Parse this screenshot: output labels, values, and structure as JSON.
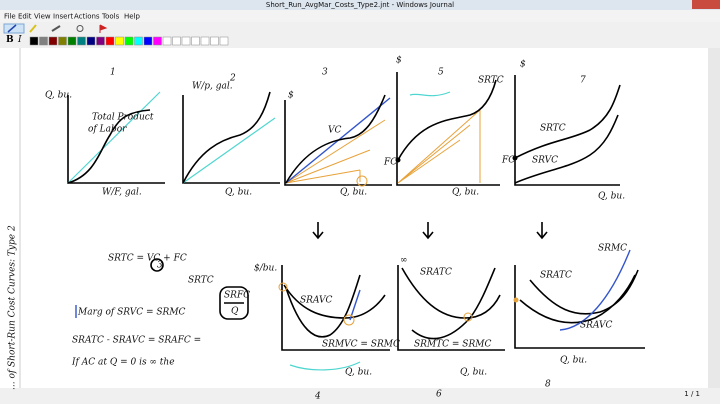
{
  "window": {
    "title": "Short_Run_AvgMar_Costs_Type2.jnt - Windows Journal"
  },
  "menu": [
    "File",
    "Edit",
    "View",
    "Insert",
    "Actions",
    "Tools",
    "Help"
  ],
  "page_counter": "1 / 1",
  "notes": {
    "side_title": "... of Short-Run Cost Curves: Type 2",
    "labels": [
      "1",
      "Q, bu.",
      "Total Product",
      "of Labor",
      "W/F, gal.",
      "2",
      "W/p, gal.",
      "Q, bu.",
      "3",
      "$",
      "VC",
      "Q, bu.",
      "5",
      "$",
      "SRTC",
      "FC",
      "Q, bu.",
      "7",
      "$",
      "SRTC",
      "SRVC",
      "FC",
      "Q, bu.",
      "SRTC = VC + FC",
      "3",
      "SRTC",
      "Marg of SRVC = SRMC",
      "SRATC - SRAVC = SRAFC =",
      "SRFC",
      "Q",
      "If AC at Q = 0 is ∞ the",
      "$/bu.",
      "SRAVC",
      "SRMVC = SRMC",
      "Q, bu.",
      "4",
      "∞",
      "SRATC",
      "SRMTC = SRMC",
      "Q, bu.",
      "6",
      "SRATC",
      "SRMC",
      "SRAVC",
      "Q, bu.",
      "8"
    ]
  }
}
